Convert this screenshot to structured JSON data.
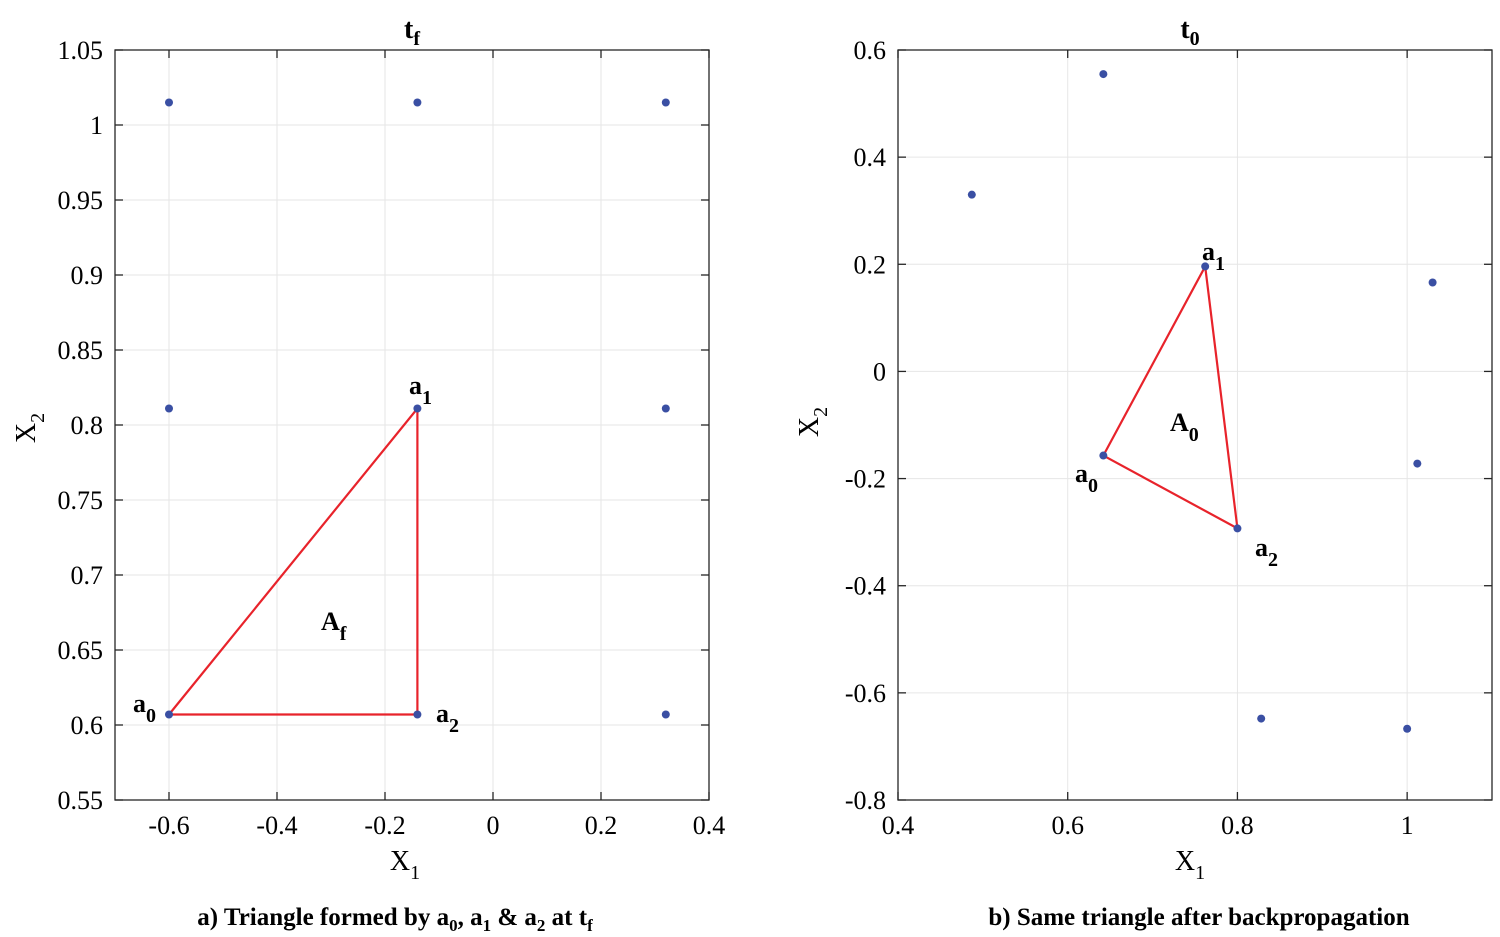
{
  "chart_data": [
    {
      "type": "scatter",
      "title": "t",
      "title_sub": "f",
      "xlabel": "X",
      "xlabel_sub": "1",
      "ylabel": "X",
      "ylabel_sub": "2",
      "xlim": [
        -0.7,
        0.4
      ],
      "ylim": [
        0.55,
        1.05
      ],
      "xticks": [
        -0.6,
        -0.4,
        -0.2,
        0,
        0.2,
        0.4
      ],
      "xtick_labels": [
        "-0.6",
        "-0.4",
        "-0.2",
        "0",
        "0.2",
        "0.4"
      ],
      "yticks": [
        0.55,
        0.6,
        0.65,
        0.7,
        0.75,
        0.8,
        0.85,
        0.9,
        0.95,
        1,
        1.05
      ],
      "ytick_labels": [
        "0.55",
        "0.6",
        "0.65",
        "0.7",
        "0.75",
        "0.8",
        "0.85",
        "0.9",
        "0.95",
        "1",
        "1.05"
      ],
      "grid": true,
      "points": [
        {
          "x": -0.6,
          "y": 1.015
        },
        {
          "x": -0.14,
          "y": 1.015
        },
        {
          "x": 0.32,
          "y": 1.015
        },
        {
          "x": -0.6,
          "y": 0.811
        },
        {
          "x": -0.14,
          "y": 0.811
        },
        {
          "x": 0.32,
          "y": 0.811
        },
        {
          "x": -0.6,
          "y": 0.607
        },
        {
          "x": -0.14,
          "y": 0.607
        },
        {
          "x": 0.32,
          "y": 0.607
        }
      ],
      "triangle": [
        {
          "name": "a",
          "sub": "0",
          "x": -0.6,
          "y": 0.607,
          "label_pos": "left"
        },
        {
          "name": "a",
          "sub": "1",
          "x": -0.14,
          "y": 0.811,
          "label_pos": "top"
        },
        {
          "name": "a",
          "sub": "2",
          "x": -0.14,
          "y": 0.607,
          "label_pos": "right"
        }
      ],
      "area_label": {
        "text": "A",
        "sub": "f",
        "x": -0.29,
        "y": 0.685
      },
      "caption": {
        "prefix": "a) Triangle formed by a",
        "s0": "0",
        "t1": ", a",
        "s1": "1",
        "t2": " & a",
        "s2": "2",
        "t3": " at t",
        "s3": "f"
      }
    },
    {
      "type": "scatter",
      "title": "t",
      "title_sub": "0",
      "xlabel": "X",
      "xlabel_sub": "1",
      "ylabel": "X",
      "ylabel_sub": "2",
      "xlim": [
        0.4,
        1.1
      ],
      "ylim": [
        -0.8,
        0.6
      ],
      "xticks": [
        0.4,
        0.6,
        0.8,
        1
      ],
      "xtick_labels": [
        "0.4",
        "0.6",
        "0.8",
        "1"
      ],
      "yticks": [
        -0.8,
        -0.6,
        -0.4,
        -0.2,
        0,
        0.2,
        0.4,
        0.6
      ],
      "ytick_labels": [
        "-0.8",
        "-0.6",
        "-0.4",
        "-0.2",
        "0",
        "0.2",
        "0.4",
        "0.6"
      ],
      "grid": true,
      "points": [
        {
          "x": 0.642,
          "y": 0.555
        },
        {
          "x": 0.487,
          "y": 0.33
        },
        {
          "x": 1.03,
          "y": 0.166
        },
        {
          "x": 0.762,
          "y": 0.196
        },
        {
          "x": 0.642,
          "y": -0.157
        },
        {
          "x": 1.012,
          "y": -0.172
        },
        {
          "x": 0.8,
          "y": -0.293
        },
        {
          "x": 0.828,
          "y": -0.648
        },
        {
          "x": 1.0,
          "y": -0.667
        }
      ],
      "triangle": [
        {
          "name": "a",
          "sub": "0",
          "x": 0.642,
          "y": -0.157,
          "label_pos": "bottom-left"
        },
        {
          "name": "a",
          "sub": "1",
          "x": 0.762,
          "y": 0.196,
          "label_pos": "top"
        },
        {
          "name": "a",
          "sub": "2",
          "x": 0.8,
          "y": -0.293,
          "label_pos": "bottom-right"
        }
      ],
      "area_label": {
        "text": "A",
        "sub": "0",
        "x": 0.737,
        "y": -0.1
      },
      "caption": {
        "prefix": "b) Same triangle after backpropagation"
      }
    }
  ],
  "colors": {
    "points": "#3a4fa3",
    "triangle": "#e8232b",
    "grid": "#e6e6e6",
    "axis": "#262626"
  }
}
